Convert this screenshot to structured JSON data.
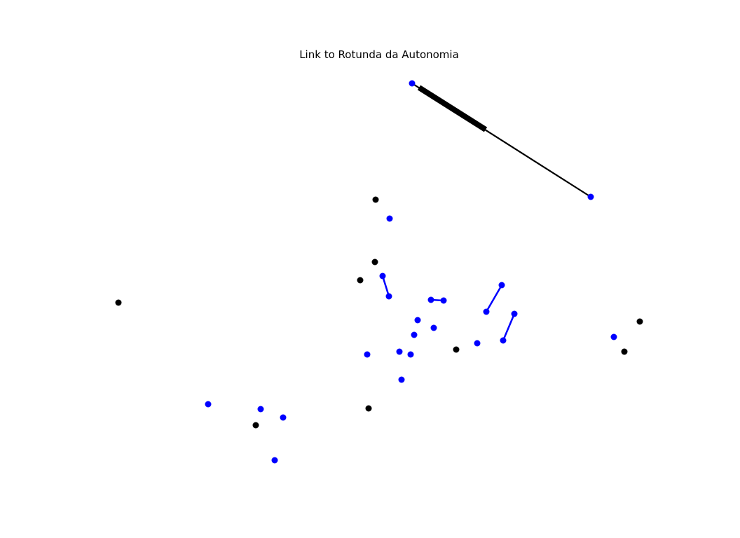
{
  "title": "Link to Rotunda da Autonomia",
  "colors": {
    "background": "#ffffff",
    "matched_node": "#0000ff",
    "unmatched_node": "#000000",
    "edge": "#0000ff",
    "highlight_edge": "#000000"
  }
}
